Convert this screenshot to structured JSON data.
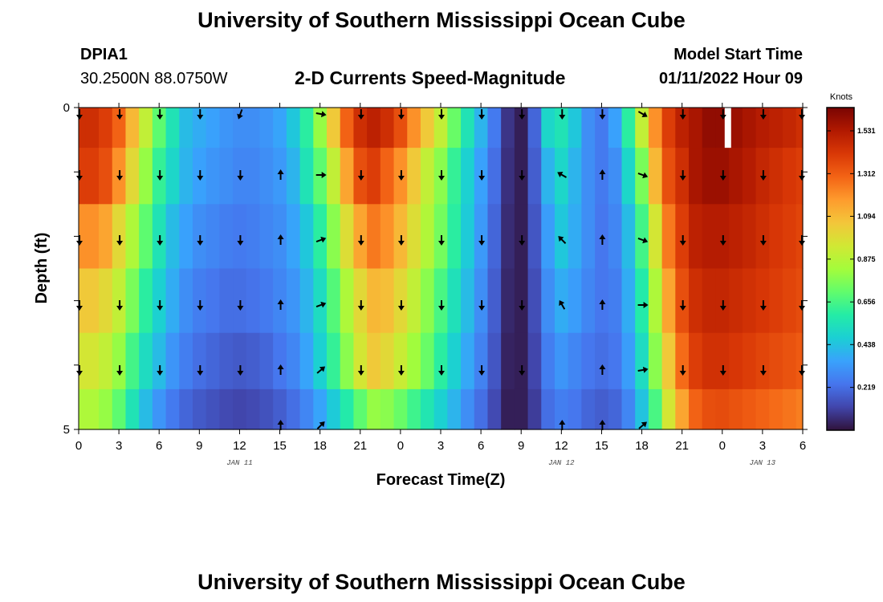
{
  "page": {
    "title": "University of Southern Mississippi Ocean Cube",
    "station": "DPIA1",
    "coords": "30.2500N  88.0750W",
    "model_start_label": "Model Start Time",
    "model_start_value": "01/11/2022 Hour 09",
    "subtitle": "2-D Currents Speed-Magnitude",
    "footer_title": "University of Southern Mississippi Ocean Cube"
  },
  "chart_data": {
    "type": "heatmap",
    "title": "2-D Currents Speed-Magnitude",
    "xlabel": "Forecast Time(Z)",
    "ylabel": "Depth (ft)",
    "x_ticks": [
      "0",
      "3",
      "6",
      "9",
      "12",
      "15",
      "18",
      "21",
      "0",
      "3",
      "6",
      "9",
      "12",
      "15",
      "18",
      "21",
      "0",
      "3",
      "6"
    ],
    "x_range_hours": [
      0,
      54
    ],
    "date_labels": [
      {
        "text": "JAN 11",
        "hour": 12
      },
      {
        "text": "JAN 12",
        "hour": 36
      },
      {
        "text": "JAN 13",
        "hour": 51
      }
    ],
    "y_ticks": [
      {
        "label": "0",
        "depth": 0
      },
      {
        "label": "",
        "depth": 1
      },
      {
        "label": "",
        "depth": 2
      },
      {
        "label": "",
        "depth": 3
      },
      {
        "label": "",
        "depth": 4
      },
      {
        "label": "5",
        "depth": 5
      }
    ],
    "y_range": [
      0,
      5
    ],
    "depth_levels": [
      0.25,
      1,
      2,
      3,
      4,
      4.75
    ],
    "speed_knots_by_hour": [
      [
        1.45,
        1.45,
        1.4,
        1.3,
        1.1,
        0.9,
        0.7,
        0.55,
        0.42,
        0.38,
        0.35,
        0.32,
        0.3,
        0.3,
        0.32,
        0.36,
        0.45,
        0.6,
        0.8,
        1.05,
        1.3,
        1.45,
        1.5,
        1.45,
        1.35,
        1.2,
        1.05,
        0.9,
        0.72,
        0.55,
        0.4,
        0.25,
        0.08,
        0.03,
        0.2,
        0.5,
        0.55,
        0.45,
        0.3,
        0.25,
        0.35,
        0.6,
        0.9,
        1.2,
        1.4,
        1.5,
        1.55,
        1.6,
        1.6,
        1.58,
        1.55,
        1.52,
        1.5,
        1.48,
        1.45
      ],
      [
        1.4,
        1.4,
        1.35,
        1.2,
        1.0,
        0.8,
        0.62,
        0.5,
        0.4,
        0.35,
        0.32,
        0.3,
        0.28,
        0.28,
        0.3,
        0.33,
        0.4,
        0.55,
        0.7,
        0.9,
        1.15,
        1.35,
        1.4,
        1.3,
        1.2,
        1.05,
        0.9,
        0.78,
        0.62,
        0.48,
        0.35,
        0.22,
        0.07,
        0.03,
        0.18,
        0.4,
        0.5,
        0.4,
        0.3,
        0.25,
        0.3,
        0.5,
        0.75,
        1.1,
        1.35,
        1.45,
        1.55,
        1.58,
        1.58,
        1.55,
        1.52,
        1.48,
        1.45,
        1.42,
        1.4
      ],
      [
        1.2,
        1.2,
        1.15,
        1.0,
        0.85,
        0.7,
        0.55,
        0.42,
        0.35,
        0.3,
        0.28,
        0.26,
        0.25,
        0.26,
        0.28,
        0.3,
        0.36,
        0.45,
        0.6,
        0.78,
        0.98,
        1.15,
        1.25,
        1.2,
        1.1,
        0.98,
        0.86,
        0.74,
        0.6,
        0.46,
        0.33,
        0.2,
        0.06,
        0.03,
        0.16,
        0.34,
        0.45,
        0.38,
        0.3,
        0.24,
        0.28,
        0.42,
        0.65,
        0.95,
        1.25,
        1.4,
        1.5,
        1.52,
        1.52,
        1.5,
        1.48,
        1.45,
        1.42,
        1.4,
        1.38
      ],
      [
        1.05,
        1.05,
        1.0,
        0.9,
        0.75,
        0.6,
        0.48,
        0.38,
        0.3,
        0.26,
        0.24,
        0.22,
        0.22,
        0.23,
        0.25,
        0.28,
        0.32,
        0.4,
        0.52,
        0.68,
        0.85,
        1.0,
        1.1,
        1.08,
        1.0,
        0.9,
        0.78,
        0.66,
        0.54,
        0.42,
        0.3,
        0.18,
        0.05,
        0.03,
        0.14,
        0.3,
        0.38,
        0.34,
        0.28,
        0.24,
        0.26,
        0.38,
        0.58,
        0.85,
        1.15,
        1.35,
        1.45,
        1.48,
        1.48,
        1.46,
        1.44,
        1.42,
        1.4,
        1.38,
        1.36
      ],
      [
        0.95,
        0.95,
        0.9,
        0.8,
        0.65,
        0.52,
        0.42,
        0.32,
        0.26,
        0.22,
        0.2,
        0.18,
        0.17,
        0.18,
        0.2,
        0.24,
        0.28,
        0.36,
        0.48,
        0.62,
        0.78,
        0.95,
        1.05,
        1.0,
        0.92,
        0.82,
        0.72,
        0.6,
        0.48,
        0.37,
        0.27,
        0.16,
        0.04,
        0.03,
        0.12,
        0.26,
        0.32,
        0.28,
        0.24,
        0.22,
        0.24,
        0.34,
        0.52,
        0.78,
        1.05,
        1.28,
        1.4,
        1.44,
        1.44,
        1.42,
        1.4,
        1.38,
        1.36,
        1.34,
        1.32
      ],
      [
        0.85,
        0.85,
        0.8,
        0.7,
        0.55,
        0.42,
        0.32,
        0.25,
        0.2,
        0.17,
        0.15,
        0.13,
        0.12,
        0.13,
        0.15,
        0.18,
        0.22,
        0.28,
        0.36,
        0.46,
        0.58,
        0.7,
        0.8,
        0.78,
        0.72,
        0.64,
        0.56,
        0.48,
        0.4,
        0.3,
        0.22,
        0.13,
        0.03,
        0.03,
        0.1,
        0.22,
        0.26,
        0.24,
        0.2,
        0.18,
        0.2,
        0.28,
        0.44,
        0.66,
        0.95,
        1.15,
        1.3,
        1.35,
        1.36,
        1.34,
        1.32,
        1.3,
        1.28,
        1.26,
        1.24
      ]
    ],
    "arrow_hours": [
      0,
      3,
      6,
      9,
      12,
      15,
      18,
      21,
      24,
      27,
      30,
      33,
      36,
      39,
      42,
      45,
      48,
      51,
      54
    ],
    "arrow_rows": [
      0,
      1,
      2,
      3,
      4,
      5
    ],
    "arrow_directions_deg": [
      [
        180,
        180,
        180,
        180,
        200,
        null,
        100,
        180,
        180,
        180,
        180,
        180,
        180,
        180,
        120,
        180,
        180,
        180,
        180
      ],
      [
        180,
        180,
        180,
        180,
        180,
        0,
        90,
        180,
        180,
        180,
        180,
        180,
        300,
        0,
        110,
        180,
        180,
        180,
        180
      ],
      [
        180,
        180,
        180,
        180,
        180,
        0,
        70,
        180,
        180,
        180,
        180,
        180,
        315,
        0,
        110,
        180,
        180,
        180,
        180
      ],
      [
        180,
        180,
        180,
        180,
        180,
        0,
        70,
        180,
        180,
        180,
        180,
        180,
        330,
        0,
        90,
        180,
        180,
        180,
        180
      ],
      [
        180,
        180,
        180,
        180,
        180,
        0,
        50,
        180,
        180,
        180,
        180,
        180,
        null,
        0,
        80,
        180,
        180,
        180,
        180
      ],
      [
        null,
        null,
        null,
        null,
        null,
        0,
        45,
        null,
        null,
        null,
        null,
        null,
        0,
        0,
        50,
        null,
        null,
        null,
        null
      ]
    ],
    "missing_cell": {
      "hour": 48,
      "depth_level_index": 0
    },
    "colorbar": {
      "unit": "Knots",
      "ticks": [
        0.219,
        0.438,
        0.656,
        0.875,
        1.094,
        1.312,
        1.531
      ],
      "tick_labels": [
        "0.219",
        "0.438",
        "0.656",
        "0.875",
        "1.094",
        "1.312",
        "1.531"
      ],
      "range": [
        0,
        1.65
      ],
      "colors": [
        "#30123b",
        "#4145ab",
        "#4675ed",
        "#39a2fc",
        "#1bcfd4",
        "#24eca6",
        "#61fc6c",
        "#a4fc3b",
        "#d1e834",
        "#f3c63a",
        "#fe9b2d",
        "#f36315",
        "#d93806",
        "#b11901",
        "#7a0402"
      ]
    }
  }
}
